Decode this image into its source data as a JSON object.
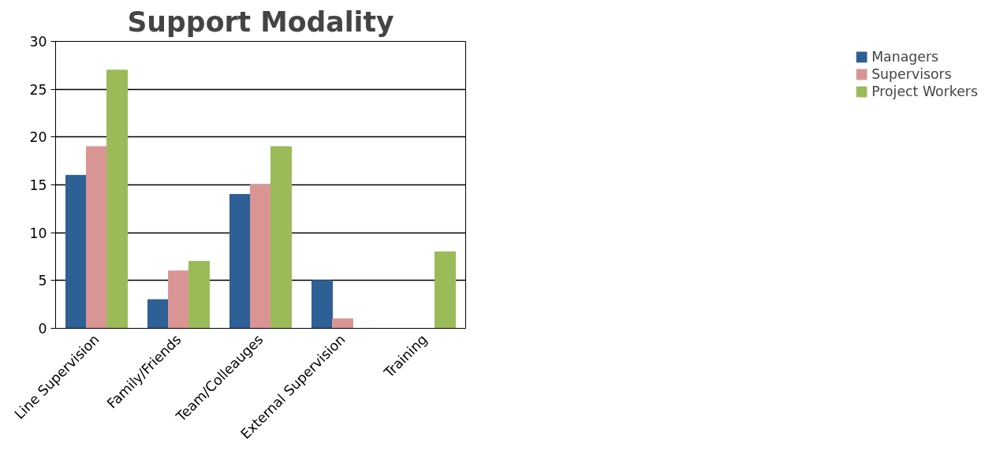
{
  "chart_data": {
    "type": "bar",
    "title": "Support Modality",
    "categories": [
      "Line Supervision",
      "Family/Friends",
      "Team/Colleauges",
      "External Supervision",
      "Training"
    ],
    "series": [
      {
        "name": "Managers",
        "color": "#2e5f95",
        "values": [
          16,
          3,
          14,
          5,
          0
        ]
      },
      {
        "name": "Supervisors",
        "color": "#d99594",
        "values": [
          19,
          6,
          15,
          1,
          0
        ]
      },
      {
        "name": "Project Workers",
        "color": "#9bbb59",
        "values": [
          27,
          7,
          19,
          0,
          8
        ]
      }
    ],
    "ylim": [
      0,
      30
    ],
    "yticks": [
      0,
      5,
      10,
      15,
      20,
      25,
      30
    ],
    "grid": "y",
    "legend": "right"
  }
}
